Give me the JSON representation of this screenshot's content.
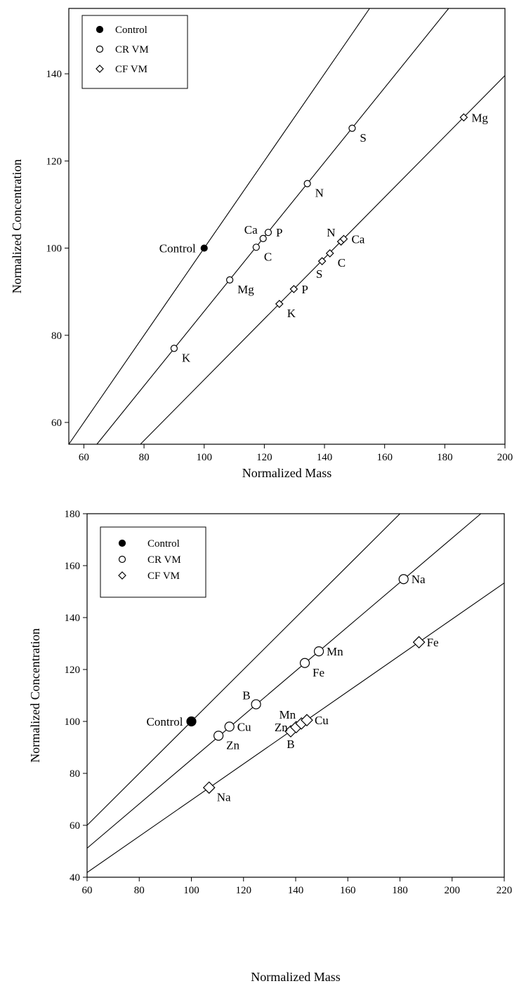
{
  "chart_data": [
    {
      "type": "scatter",
      "xlabel": "Normalized Mass",
      "ylabel": "Normalized Concentration",
      "xlim": [
        55,
        200
      ],
      "ylim": [
        55,
        155
      ],
      "xticks": [
        60,
        80,
        100,
        120,
        140,
        160,
        180,
        200
      ],
      "yticks": [
        60,
        80,
        100,
        120,
        140
      ],
      "legend": {
        "position": "top-left",
        "entries": [
          {
            "label": "Control",
            "marker": "filled-circle"
          },
          {
            "label": "CR VM",
            "marker": "open-circle"
          },
          {
            "label": "CF VM",
            "marker": "open-diamond"
          }
        ]
      },
      "reference_lines": [
        {
          "slope": 1.0
        },
        {
          "slope": 0.855
        },
        {
          "slope": 0.698
        }
      ],
      "series": [
        {
          "name": "Control",
          "marker": "filled-circle",
          "points": [
            {
              "label": "Control",
              "x": 100,
              "y": 100,
              "label_side": "left"
            }
          ]
        },
        {
          "name": "CR VM",
          "marker": "open-circle",
          "points": [
            {
              "label": "K",
              "x": 90,
              "y": 77,
              "label_side": "right-below"
            },
            {
              "label": "Mg",
              "x": 108.5,
              "y": 92.7,
              "label_side": "right-below"
            },
            {
              "label": "C",
              "x": 117.3,
              "y": 100.2,
              "label_side": "right-below"
            },
            {
              "label": "Ca",
              "x": 119.6,
              "y": 102.2,
              "label_side": "left-above"
            },
            {
              "label": "P",
              "x": 121.3,
              "y": 103.6,
              "label_side": "right"
            },
            {
              "label": "N",
              "x": 134.3,
              "y": 114.8,
              "label_side": "right-below"
            },
            {
              "label": "S",
              "x": 149.2,
              "y": 127.5,
              "label_side": "right-below"
            }
          ]
        },
        {
          "name": "CF VM",
          "marker": "open-diamond",
          "points": [
            {
              "label": "K",
              "x": 125,
              "y": 87.2,
              "label_side": "right-below"
            },
            {
              "label": "P",
              "x": 129.8,
              "y": 90.6,
              "label_side": "right"
            },
            {
              "label": "S",
              "x": 139.2,
              "y": 97,
              "label_side": "below-left"
            },
            {
              "label": "C",
              "x": 141.8,
              "y": 98.8,
              "label_side": "right-below"
            },
            {
              "label": "N",
              "x": 145.5,
              "y": 101.5,
              "label_side": "left-above"
            },
            {
              "label": "Ca",
              "x": 146.4,
              "y": 102.1,
              "label_side": "right"
            },
            {
              "label": "Mg",
              "x": 186.3,
              "y": 130,
              "label_side": "right"
            }
          ]
        }
      ]
    },
    {
      "type": "scatter",
      "xlabel": "Normalized Mass",
      "ylabel": "Normalized Concentration",
      "xlim": [
        60,
        220
      ],
      "ylim": [
        40,
        180
      ],
      "xticks": [
        60,
        80,
        100,
        120,
        140,
        160,
        180,
        200,
        220
      ],
      "yticks": [
        40,
        60,
        80,
        100,
        120,
        140,
        160,
        180
      ],
      "legend": {
        "position": "top-left",
        "entries": [
          {
            "label": "Control",
            "marker": "filled-circle"
          },
          {
            "label": "CR VM",
            "marker": "open-circle"
          },
          {
            "label": "CF VM",
            "marker": "open-diamond"
          }
        ]
      },
      "reference_lines": [
        {
          "slope": 1.0
        },
        {
          "slope": 0.853
        },
        {
          "slope": 0.697
        }
      ],
      "series": [
        {
          "name": "Control",
          "marker": "filled-circle",
          "points": [
            {
              "label": "Control",
              "x": 100,
              "y": 100,
              "label_side": "left"
            }
          ]
        },
        {
          "name": "CR VM",
          "marker": "open-circle",
          "points": [
            {
              "label": "Zn",
              "x": 110.4,
              "y": 94.5,
              "label_side": "right-below"
            },
            {
              "label": "Cu",
              "x": 114.6,
              "y": 98,
              "label_side": "right"
            },
            {
              "label": "B",
              "x": 124.8,
              "y": 106.6,
              "label_side": "left-above"
            },
            {
              "label": "Fe",
              "x": 143.5,
              "y": 122.5,
              "label_side": "right-below"
            },
            {
              "label": "Mn",
              "x": 148.9,
              "y": 127,
              "label_side": "right"
            },
            {
              "label": "Na",
              "x": 181.4,
              "y": 154.8,
              "label_side": "right"
            }
          ]
        },
        {
          "name": "CF VM",
          "marker": "open-diamond",
          "points": [
            {
              "label": "Na",
              "x": 106.8,
              "y": 74.5,
              "label_side": "right-below"
            },
            {
              "label": "B",
              "x": 138.1,
              "y": 96.2,
              "label_side": "below"
            },
            {
              "label": "Zn",
              "x": 140.2,
              "y": 97.8,
              "label_side": "left"
            },
            {
              "label": "Mn",
              "x": 142.2,
              "y": 99.2,
              "label_side": "left-above"
            },
            {
              "label": "Cu",
              "x": 144.3,
              "y": 100.5,
              "label_side": "right"
            },
            {
              "label": "Fe",
              "x": 187.3,
              "y": 130.5,
              "label_side": "right"
            }
          ]
        }
      ]
    }
  ]
}
